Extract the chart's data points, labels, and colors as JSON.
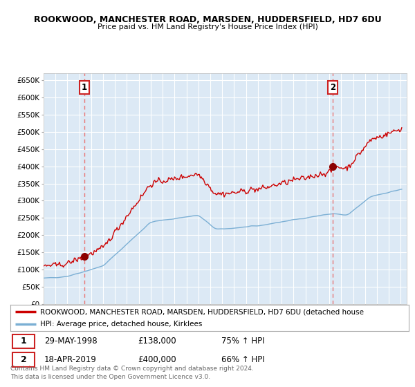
{
  "title1": "ROOKWOOD, MANCHESTER ROAD, MARSDEN, HUDDERSFIELD, HD7 6DU",
  "title2": "Price paid vs. HM Land Registry's House Price Index (HPI)",
  "legend_line1": "ROOKWOOD, MANCHESTER ROAD, MARSDEN, HUDDERSFIELD, HD7 6DU (detached house",
  "legend_line2": "HPI: Average price, detached house, Kirklees",
  "annotation1_date": "29-MAY-1998",
  "annotation1_price": "£138,000",
  "annotation1_hpi": "75% ↑ HPI",
  "annotation2_date": "18-APR-2019",
  "annotation2_price": "£400,000",
  "annotation2_hpi": "66% ↑ HPI",
  "sale1_year": 1998.41,
  "sale1_price": 138000,
  "sale2_year": 2019.29,
  "sale2_price": 400000,
  "ylabel_values": [
    "£0",
    "£50K",
    "£100K",
    "£150K",
    "£200K",
    "£250K",
    "£300K",
    "£350K",
    "£400K",
    "£450K",
    "£500K",
    "£550K",
    "£600K",
    "£650K"
  ],
  "ytick_vals": [
    0,
    50000,
    100000,
    150000,
    200000,
    250000,
    300000,
    350000,
    400000,
    450000,
    500000,
    550000,
    600000,
    650000
  ],
  "ylim": [
    0,
    670000
  ],
  "xlim_start": 1995.0,
  "xlim_end": 2025.5,
  "bg_color": "#dce9f5",
  "red_line_color": "#cc0000",
  "blue_line_color": "#7bafd4",
  "grid_color": "#ffffff",
  "dashed_line_color": "#e87777",
  "sale_marker_color": "#8b0000",
  "footer_text": "Contains HM Land Registry data © Crown copyright and database right 2024.\nThis data is licensed under the Open Government Licence v3.0."
}
